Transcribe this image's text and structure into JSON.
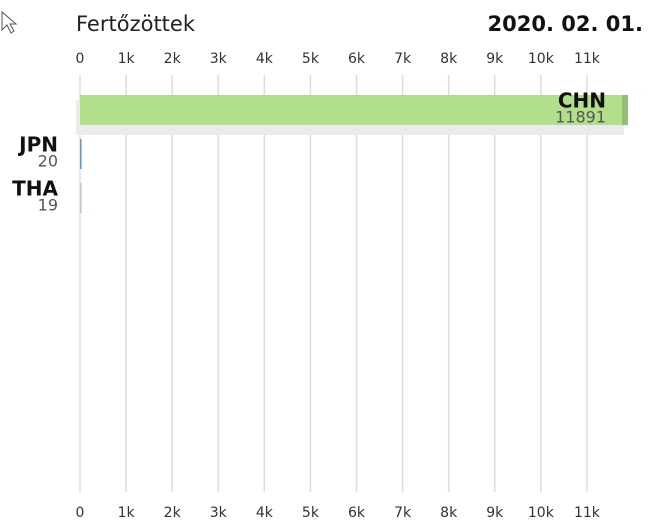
{
  "chart_data": {
    "type": "bar",
    "orientation": "horizontal",
    "title": "Fertőzöttek",
    "date": "2020. 02. 01.",
    "categories": [
      "CHN",
      "JPN",
      "THA"
    ],
    "values": [
      11891,
      20,
      19
    ],
    "colors": [
      "#b1df8b",
      "#6a9fd0",
      "#c4d4e4"
    ],
    "xlim": [
      0,
      11891
    ],
    "xticks": [
      0,
      {
        "value": 1000,
        "label": "1k"
      },
      {
        "value": 2000,
        "label": "2k"
      },
      {
        "value": 3000,
        "label": "3k"
      },
      {
        "value": 4000,
        "label": "4k"
      },
      {
        "value": 5000,
        "label": "5k"
      },
      {
        "value": 6000,
        "label": "6k"
      },
      {
        "value": 7000,
        "label": "7k"
      },
      {
        "value": 8000,
        "label": "8k"
      },
      {
        "value": 9000,
        "label": "9k"
      },
      {
        "value": 10000,
        "label": "10k"
      },
      {
        "value": 11000,
        "label": "11k"
      }
    ],
    "grid": true
  }
}
